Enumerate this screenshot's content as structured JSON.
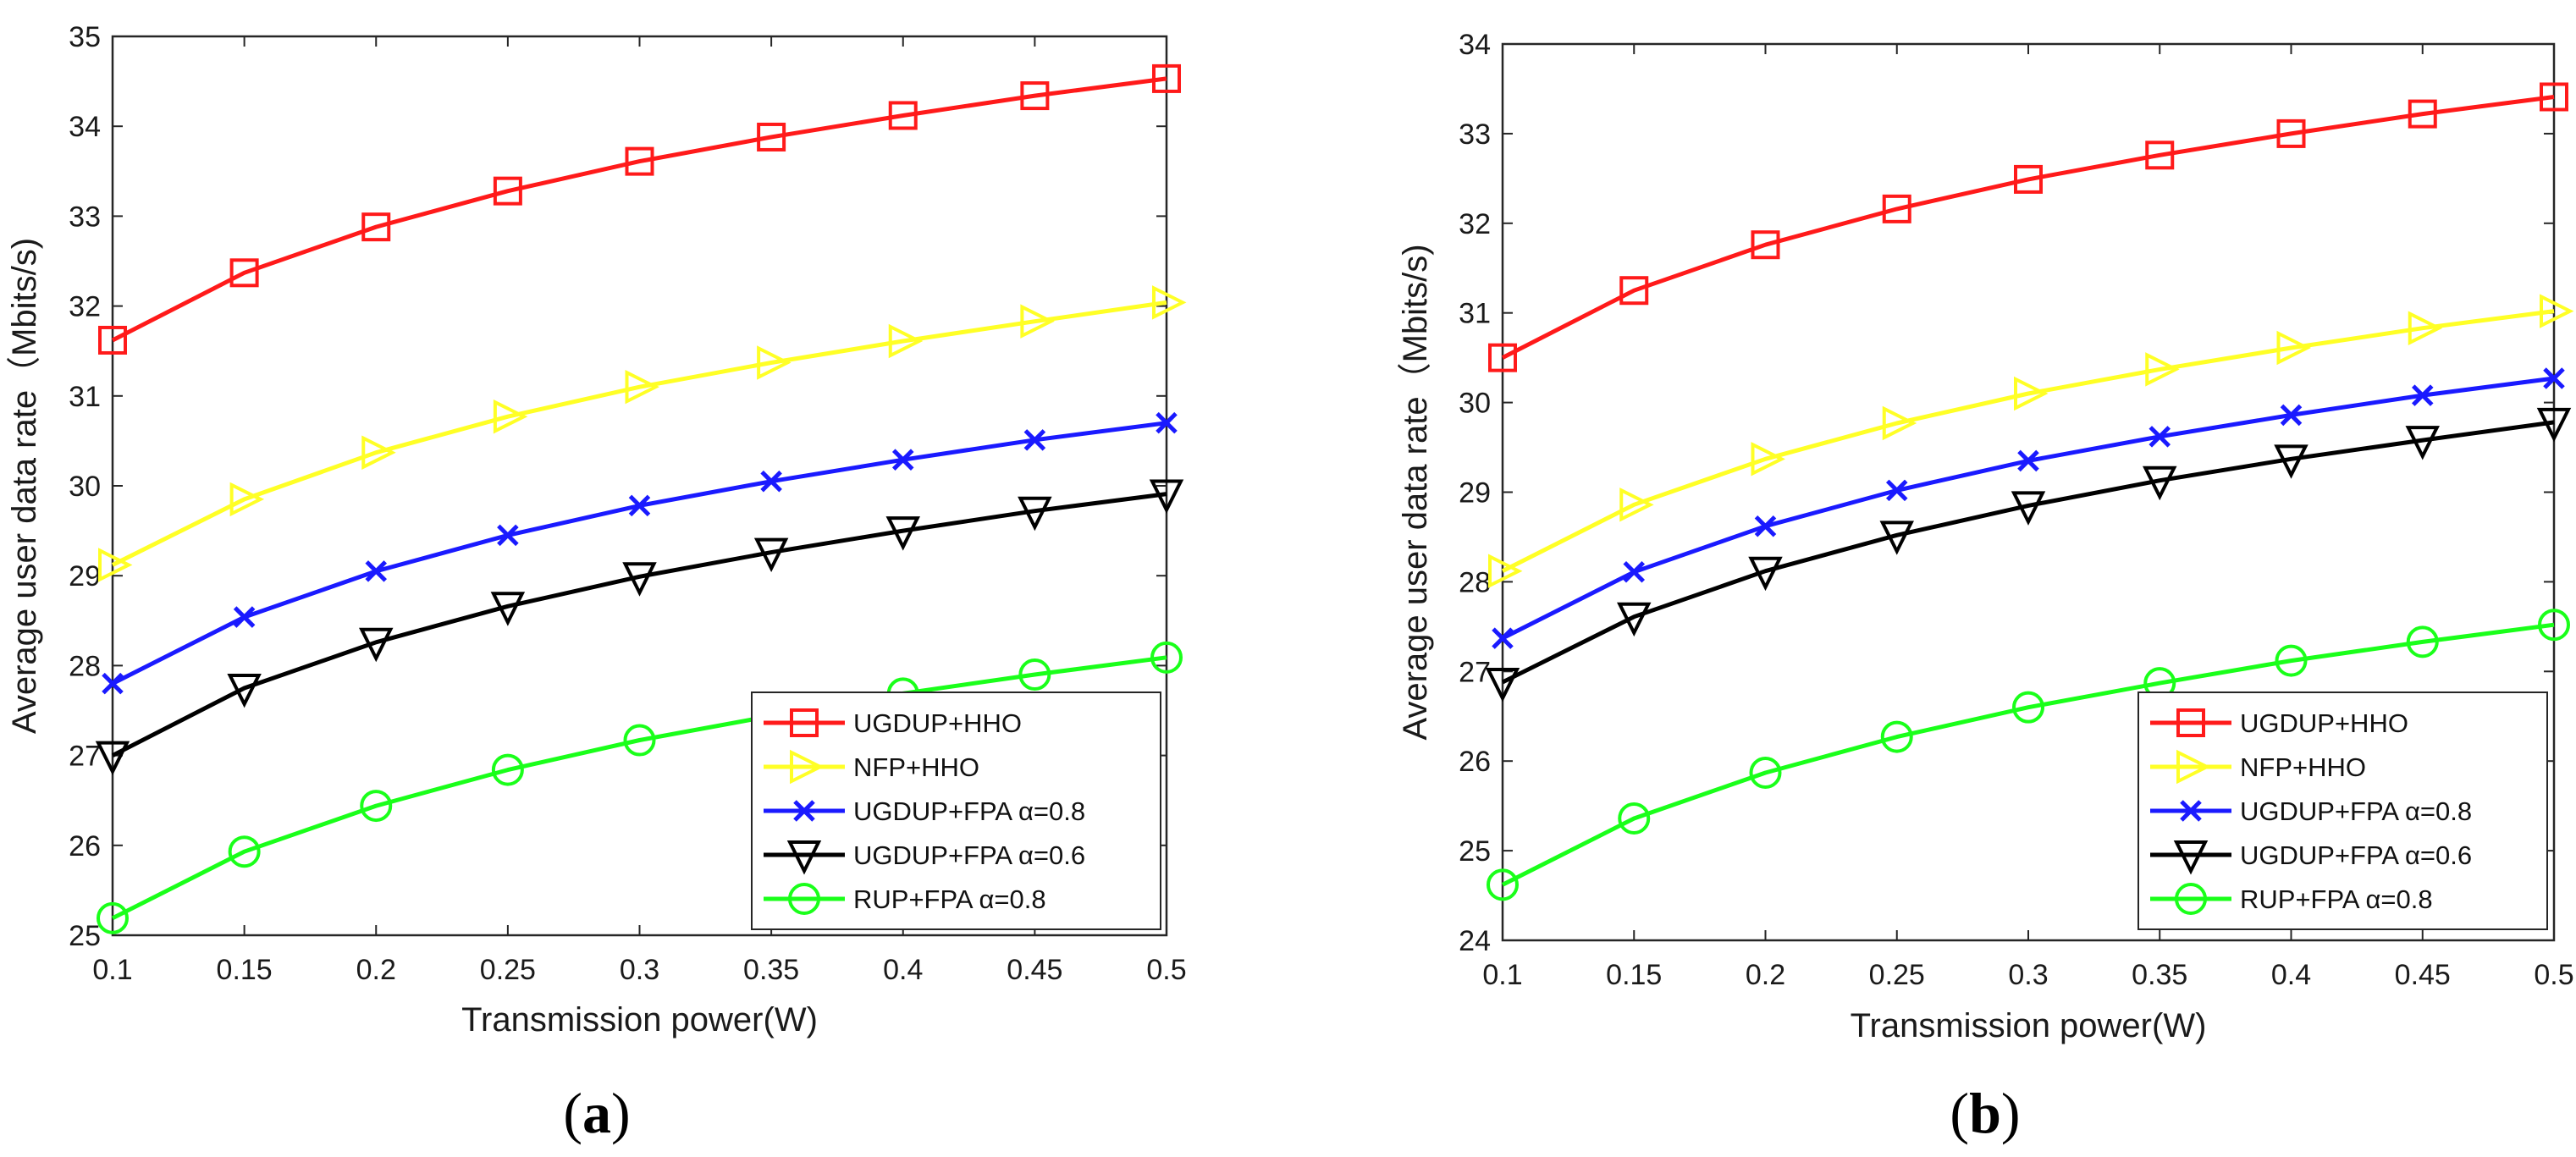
{
  "figure": {
    "caption_a": {
      "open": "(",
      "letter": "a",
      "close": ")"
    },
    "caption_b": {
      "open": "(",
      "letter": "b",
      "close": ")"
    }
  },
  "series_style": [
    {
      "color": "#ff1a1a",
      "marker": "square"
    },
    {
      "color": "#ffff26",
      "marker": "triangle-right"
    },
    {
      "color": "#1a1aff",
      "marker": "x"
    },
    {
      "color": "#000000",
      "marker": "triangle-down"
    },
    {
      "color": "#1aff1a",
      "marker": "circle"
    }
  ],
  "chart_data": [
    {
      "type": "line",
      "panel": "a",
      "xlabel": "Transmission power(W)",
      "ylabel": "Average user data rate（Mbits/s)",
      "xlim": [
        0.1,
        0.5
      ],
      "ylim": [
        25,
        35
      ],
      "xticks": [
        "0.1",
        "0.15",
        "0.2",
        "0.25",
        "0.3",
        "0.35",
        "0.4",
        "0.45",
        "0.5"
      ],
      "yticks": [
        "25",
        "26",
        "27",
        "28",
        "29",
        "30",
        "31",
        "32",
        "33",
        "34",
        "35"
      ],
      "x": [
        0.1,
        0.15,
        0.2,
        0.25,
        0.3,
        0.35,
        0.4,
        0.45,
        0.5
      ],
      "grid": false,
      "legend_position": "bottom-right",
      "series": [
        {
          "name": "UGDUP+HHO",
          "values": [
            31.62,
            32.37,
            32.88,
            33.28,
            33.61,
            33.88,
            34.12,
            34.34,
            34.53
          ]
        },
        {
          "name": "NFP+HHO",
          "values": [
            29.12,
            29.85,
            30.37,
            30.77,
            31.1,
            31.37,
            31.61,
            31.83,
            32.04
          ]
        },
        {
          "name": "UGDUP+FPA α=0.8",
          "values": [
            27.8,
            28.54,
            29.05,
            29.45,
            29.78,
            30.05,
            30.29,
            30.51,
            30.7
          ]
        },
        {
          "name": "UGDUP+FPA α=0.6",
          "values": [
            27.0,
            27.75,
            28.26,
            28.66,
            28.99,
            29.26,
            29.5,
            29.72,
            29.91
          ]
        },
        {
          "name": "RUP+FPA α=0.8",
          "values": [
            25.19,
            25.93,
            26.44,
            26.84,
            27.17,
            27.44,
            27.69,
            27.9,
            28.09
          ]
        }
      ]
    },
    {
      "type": "line",
      "panel": "b",
      "xlabel": "Transmission power(W)",
      "ylabel": "Average user data rate（Mbits/s)",
      "xlim": [
        0.1,
        0.5
      ],
      "ylim": [
        24,
        34
      ],
      "xticks": [
        "0.1",
        "0.15",
        "0.2",
        "0.25",
        "0.3",
        "0.35",
        "0.4",
        "0.45",
        "0.5"
      ],
      "yticks": [
        "24",
        "25",
        "26",
        "27",
        "28",
        "29",
        "30",
        "31",
        "32",
        "33",
        "34"
      ],
      "x": [
        0.1,
        0.15,
        0.2,
        0.25,
        0.3,
        0.35,
        0.4,
        0.45,
        0.5
      ],
      "grid": false,
      "legend_position": "bottom-right",
      "series": [
        {
          "name": "UGDUP+HHO",
          "values": [
            30.5,
            31.25,
            31.76,
            32.16,
            32.49,
            32.76,
            33.0,
            33.22,
            33.41
          ]
        },
        {
          "name": "NFP+HHO",
          "values": [
            28.12,
            28.86,
            29.37,
            29.77,
            30.1,
            30.37,
            30.61,
            30.83,
            31.02
          ]
        },
        {
          "name": "UGDUP+FPA α=0.8",
          "values": [
            27.37,
            28.11,
            28.62,
            29.02,
            29.35,
            29.62,
            29.86,
            30.08,
            30.27
          ]
        },
        {
          "name": "UGDUP+FPA α=0.6",
          "values": [
            26.88,
            27.61,
            28.12,
            28.52,
            28.85,
            29.13,
            29.37,
            29.58,
            29.78
          ]
        },
        {
          "name": "RUP+FPA α=0.8",
          "values": [
            24.62,
            25.36,
            25.87,
            26.27,
            26.6,
            26.87,
            27.12,
            27.33,
            27.52
          ]
        }
      ]
    }
  ]
}
